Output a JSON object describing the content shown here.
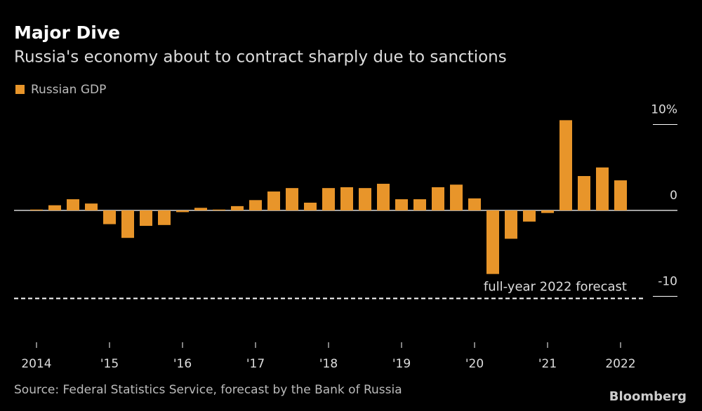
{
  "chart_data": {
    "type": "bar",
    "title": "Major Dive",
    "subtitle": "Russia's economy about to contract sharply due to sanctions",
    "source": "Source: Federal Statistics Service, forecast by the Bank of Russia",
    "brand": "Bloomberg",
    "categories": [
      "2014",
      null,
      null,
      null,
      "'15",
      null,
      null,
      null,
      "'16",
      null,
      null,
      null,
      "'17",
      null,
      null,
      null,
      "'18",
      null,
      null,
      null,
      "'19",
      null,
      null,
      null,
      "'20",
      null,
      null,
      null,
      "'21",
      null,
      null,
      null,
      "2022"
    ],
    "series": [
      {
        "name": "Russian GDP",
        "color": "#e8952a",
        "values": [
          0.1,
          0.6,
          1.3,
          0.8,
          -1.6,
          -3.2,
          -1.8,
          -1.7,
          -0.2,
          0.3,
          0.1,
          0.5,
          1.2,
          2.2,
          2.6,
          0.9,
          2.6,
          2.7,
          2.6,
          3.1,
          1.3,
          1.3,
          2.7,
          3.0,
          1.4,
          -7.4,
          -3.3,
          -1.3,
          -0.3,
          10.5,
          4.0,
          5.0,
          3.5
        ]
      }
    ],
    "forecast": {
      "value": -10,
      "label": "full-year 2022 forecast"
    },
    "ylim": [
      -12,
      12
    ],
    "yticks": [
      -10,
      0,
      {
        "value": 10,
        "label": "10%"
      }
    ]
  }
}
